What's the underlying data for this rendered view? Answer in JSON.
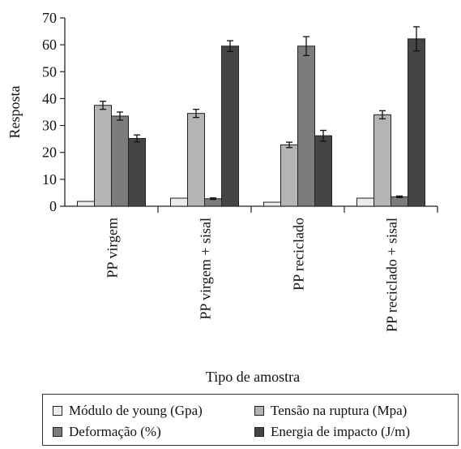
{
  "chart_data": {
    "type": "bar",
    "title": "",
    "xlabel": "Tipo de amostra",
    "ylabel": "Resposta",
    "ylim": [
      0,
      70
    ],
    "yticks": [
      0,
      10,
      20,
      30,
      40,
      50,
      60,
      70
    ],
    "grid": false,
    "legend_position": "bottom",
    "categories": [
      "PP  virgem",
      "PP virgem + sisal",
      "PP reciclado",
      "PP reciclado + sisal"
    ],
    "series": [
      {
        "name": "Módulo de young (Gpa)",
        "color": "#ececec",
        "values": [
          1.8,
          3.0,
          1.5,
          3.0
        ],
        "errors": [
          0,
          0,
          0,
          0
        ]
      },
      {
        "name": "Tensão na ruptura (Mpa)",
        "color": "#b4b4b4",
        "values": [
          37.5,
          34.5,
          22.8,
          34.0
        ],
        "errors": [
          1.5,
          1.5,
          1.0,
          1.5
        ]
      },
      {
        "name": "Deformação (%)",
        "color": "#7c7c7c",
        "values": [
          33.5,
          2.8,
          59.5,
          3.5
        ],
        "errors": [
          1.5,
          0.3,
          3.5,
          0.3
        ]
      },
      {
        "name": "Energia de impacto (J/m)",
        "color": "#454545",
        "values": [
          25.2,
          59.5,
          26.2,
          62.2
        ],
        "errors": [
          1.3,
          2.0,
          2.0,
          4.5
        ]
      }
    ],
    "legend": [
      {
        "label": "Módulo de young (Gpa)",
        "color": "#ececec"
      },
      {
        "label": "Tensão na ruptura (Mpa)",
        "color": "#b4b4b4"
      },
      {
        "label": "Deformação (%)",
        "color": "#7c7c7c"
      },
      {
        "label": "Energia de impacto (J/m)",
        "color": "#454545"
      }
    ]
  }
}
